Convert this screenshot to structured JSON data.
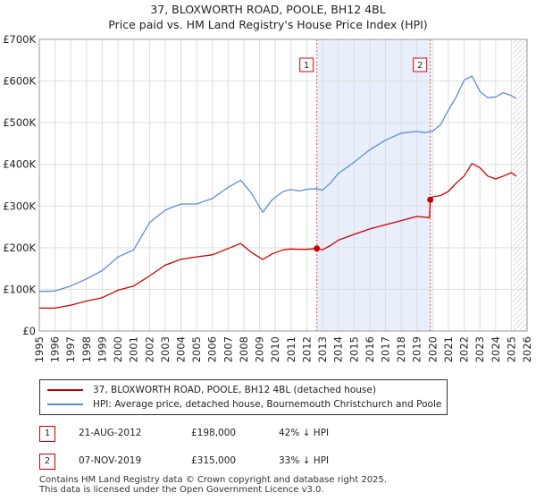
{
  "title": "37, BLOXWORTH ROAD, POOLE, BH12 4BL",
  "subtitle": "Price paid vs. HM Land Registry's House Price Index (HPI)",
  "colors": {
    "price_line": "#cc0000",
    "hpi_line": "#5b8fd4",
    "shade": "#e8eefb",
    "grid": "#dddddd"
  },
  "chart_data": {
    "type": "line",
    "title": "37, BLOXWORTH ROAD, POOLE, BH12 4BL",
    "xlim": [
      1995,
      2026
    ],
    "ylim": [
      0,
      700000
    ],
    "y_ticks": [
      0,
      100000,
      200000,
      300000,
      400000,
      500000,
      600000,
      700000
    ],
    "y_tick_labels": [
      "£0",
      "£100K",
      "£200K",
      "£300K",
      "£400K",
      "£500K",
      "£600K",
      "£700K"
    ],
    "x_ticks": [
      1995,
      1996,
      1997,
      1998,
      1999,
      2000,
      2001,
      2002,
      2003,
      2004,
      2005,
      2006,
      2007,
      2008,
      2009,
      2010,
      2011,
      2012,
      2013,
      2014,
      2015,
      2016,
      2017,
      2018,
      2019,
      2020,
      2021,
      2022,
      2023,
      2024,
      2025,
      2026
    ],
    "x_tick_labels": [
      "1995",
      "1996",
      "1997",
      "1998",
      "1999",
      "2000",
      "2001",
      "2002",
      "2003",
      "2004",
      "2005",
      "2006",
      "2007",
      "2008",
      "2009",
      "2010",
      "2011",
      "2012",
      "2013",
      "2014",
      "2015",
      "2016",
      "2017",
      "2018",
      "2019",
      "2020",
      "2021",
      "2022",
      "2023",
      "2024",
      "2025",
      "2026"
    ],
    "shaded_span": [
      2012.64,
      2019.85
    ],
    "hatched_from": 2025.1,
    "series": [
      {
        "name": "37, BLOXWORTH ROAD, POOLE, BH12 4BL (detached house)",
        "x": [
          1995,
          1996,
          1997,
          1998,
          1999,
          2000,
          2001,
          2002,
          2003,
          2004,
          2005,
          2006,
          2007,
          2007.8,
          2008.5,
          2009.2,
          2009.8,
          2010.5,
          2011,
          2011.5,
          2012,
          2012.64,
          2013,
          2013.5,
          2014,
          2015,
          2016,
          2017,
          2018,
          2019,
          2019.8,
          2019.85,
          2020,
          2020.5,
          2021,
          2021.5,
          2022,
          2022.5,
          2023,
          2023.5,
          2024,
          2024.5,
          2025,
          2025.3
        ],
        "y": [
          55000,
          55000,
          62000,
          72000,
          80000,
          98000,
          108000,
          132000,
          158000,
          172000,
          178000,
          183000,
          198000,
          210000,
          188000,
          172000,
          185000,
          195000,
          197000,
          196000,
          196000,
          198000,
          195000,
          205000,
          218000,
          232000,
          245000,
          255000,
          265000,
          275000,
          272000,
          315000,
          322000,
          325000,
          335000,
          355000,
          372000,
          402000,
          392000,
          372000,
          365000,
          372000,
          380000,
          372000
        ]
      },
      {
        "name": "HPI: Average price, detached house, Bournemouth Christchurch and Poole",
        "x": [
          1995,
          1996,
          1997,
          1998,
          1999,
          2000,
          2001,
          2002,
          2003,
          2004,
          2005,
          2006,
          2007,
          2007.8,
          2008.5,
          2009.2,
          2009.8,
          2010.5,
          2011,
          2011.5,
          2012,
          2012.64,
          2013,
          2013.5,
          2014,
          2015,
          2016,
          2017,
          2018,
          2019,
          2019.5,
          2020,
          2020.5,
          2021,
          2021.5,
          2022,
          2022.5,
          2023,
          2023.5,
          2024,
          2024.5,
          2025,
          2025.3
        ],
        "y": [
          95000,
          96000,
          108000,
          125000,
          145000,
          178000,
          195000,
          260000,
          290000,
          305000,
          305000,
          318000,
          345000,
          362000,
          330000,
          285000,
          315000,
          335000,
          340000,
          336000,
          340000,
          342000,
          338000,
          355000,
          378000,
          405000,
          435000,
          458000,
          475000,
          479000,
          476000,
          480000,
          495000,
          530000,
          562000,
          602000,
          612000,
          575000,
          560000,
          562000,
          572000,
          565000,
          558000
        ]
      }
    ],
    "markers": [
      {
        "label": "1",
        "x": 2012.64,
        "y": 198000
      },
      {
        "label": "2",
        "x": 2019.85,
        "y": 315000
      }
    ]
  },
  "legend": {
    "property_label": "37, BLOXWORTH ROAD, POOLE, BH12 4BL (detached house)",
    "hpi_label": "HPI: Average price, detached house, Bournemouth Christchurch and Poole"
  },
  "sales": [
    {
      "num": "1",
      "date": "21-AUG-2012",
      "price": "£198,000",
      "pct": "42% ↓ HPI"
    },
    {
      "num": "2",
      "date": "07-NOV-2019",
      "price": "£315,000",
      "pct": "33% ↓ HPI"
    }
  ],
  "footer": {
    "line1": "Contains HM Land Registry data © Crown copyright and database right 2025.",
    "line2": "This data is licensed under the Open Government Licence v3.0."
  }
}
